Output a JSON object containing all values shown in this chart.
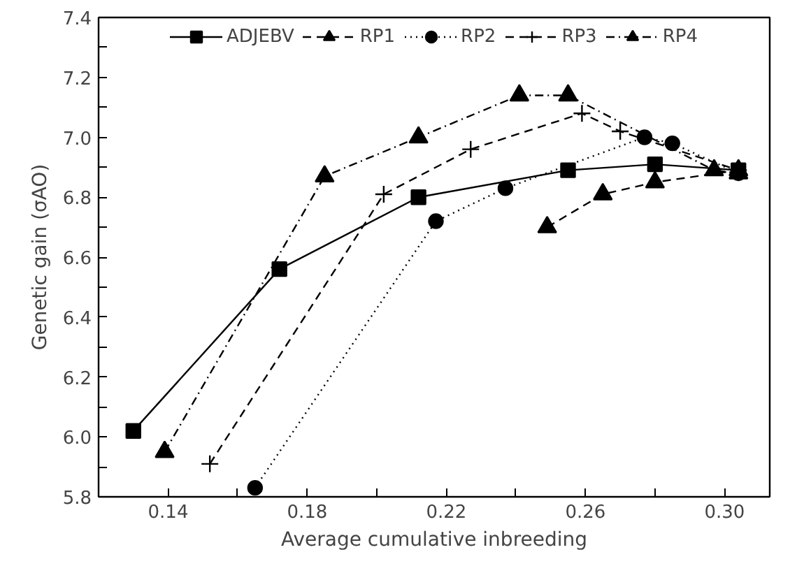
{
  "chart_data": {
    "type": "line",
    "xlabel": "Average cumulative inbreeding",
    "ylabel": "Genetic gain (σAO)",
    "xlim": [
      0.12,
      0.313
    ],
    "ylim": [
      5.8,
      7.4
    ],
    "xticks": [
      0.14,
      {
        "value": 0.16,
        "label": null
      },
      0.18,
      {
        "value": 0.2,
        "label": null
      },
      0.22,
      {
        "value": 0.24,
        "label": null
      },
      0.26,
      {
        "value": 0.28,
        "label": null
      },
      {
        "value": 0.3,
        "label": "0.30"
      }
    ],
    "yticks": [
      5.8,
      {
        "value": 5.9,
        "label": null
      },
      {
        "value": 6,
        "label": "6.0"
      },
      {
        "value": 6.1,
        "label": null
      },
      6.2,
      {
        "value": 6.3,
        "label": null
      },
      6.4,
      {
        "value": 6.5,
        "label": null
      },
      6.6,
      {
        "value": 6.7,
        "label": null
      },
      6.8,
      {
        "value": 6.9,
        "label": null
      },
      {
        "value": 7,
        "label": "7.0"
      },
      {
        "value": 7.1,
        "label": null
      },
      7.2,
      {
        "value": 7.3,
        "label": null
      },
      7.4
    ],
    "grid": false,
    "legend": "top",
    "series": [
      {
        "name": "ADJEBV",
        "color": "#000000",
        "marker": "square",
        "line_style": "solid",
        "x": [
          0.13,
          0.172,
          0.212,
          0.255,
          0.28,
          0.304
        ],
        "values": [
          6.02,
          6.56,
          6.8,
          6.89,
          6.91,
          6.89
        ]
      },
      {
        "name": "RP1",
        "color": "#000000",
        "marker": "triangle",
        "line_style": "dashed",
        "x": [
          0.249,
          0.265,
          0.28,
          0.304
        ],
        "values": [
          6.7,
          6.81,
          6.85,
          6.89
        ]
      },
      {
        "name": "RP2",
        "color": "#000000",
        "marker": "circle",
        "line_style": "dotted",
        "x": [
          0.165,
          0.217,
          0.237,
          0.277,
          0.285,
          0.304
        ],
        "values": [
          5.83,
          6.72,
          6.83,
          7.0,
          6.98,
          6.88
        ]
      },
      {
        "name": "RP3",
        "color": "#000000",
        "marker": "cross",
        "line_style": "dashed",
        "x": [
          0.152,
          0.202,
          0.227,
          0.259,
          0.27,
          0.304
        ],
        "values": [
          5.91,
          6.81,
          6.96,
          7.08,
          7.02,
          6.89
        ]
      },
      {
        "name": "RP4",
        "color": "#000000",
        "marker": "triangle",
        "line_style": "dashdot",
        "x": [
          0.139,
          0.185,
          0.212,
          0.241,
          0.255,
          0.297,
          0.304
        ],
        "values": [
          5.95,
          6.87,
          7.0,
          7.14,
          7.14,
          6.89,
          6.88
        ]
      }
    ]
  }
}
